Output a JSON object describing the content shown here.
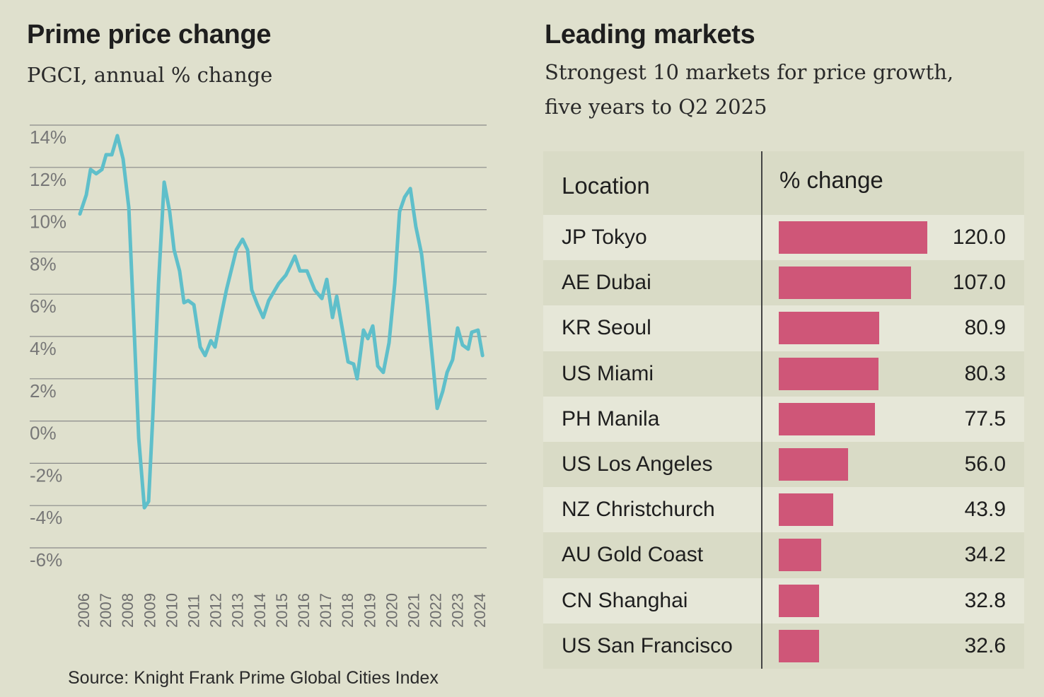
{
  "left": {
    "title": "Prime price change",
    "subtitle": "PGCI, annual % change",
    "source": "Source: Knight Frank Prime Global Cities Index"
  },
  "right": {
    "title": "Leading markets",
    "subtitle_line1": "Strongest 10 markets for price growth,",
    "subtitle_line2": "five years to Q2 2025",
    "header_location": "Location",
    "header_change": "% change"
  },
  "colors": {
    "line": "#5fbfca",
    "bar": "#cf5678",
    "background": "#dfe0cd",
    "grid": "#8a8a8a"
  },
  "chart_data": [
    {
      "type": "line",
      "title": "Prime price change",
      "subtitle": "PGCI, annual % change",
      "ylim": [
        -6,
        14
      ],
      "y_ticks": [
        "14%",
        "12%",
        "10%",
        "8%",
        "6%",
        "4%",
        "2%",
        "0%",
        "-2%",
        "-4%",
        "-6%"
      ],
      "y_tick_values": [
        14,
        12,
        10,
        8,
        6,
        4,
        2,
        0,
        -2,
        -4,
        -6
      ],
      "x_ticks": [
        "2006",
        "2007",
        "2008",
        "2009",
        "2010",
        "2011",
        "2012",
        "2013",
        "2014",
        "2015",
        "2016",
        "2017",
        "2018",
        "2019",
        "2020",
        "2021",
        "2022",
        "2023",
        "2024"
      ],
      "grid": true,
      "x": [
        2005.84,
        2006.13,
        2006.32,
        2006.58,
        2006.84,
        2007.03,
        2007.29,
        2007.54,
        2007.8,
        2008.06,
        2008.32,
        2008.51,
        2008.77,
        2008.96,
        2009.15,
        2009.41,
        2009.67,
        2009.92,
        2010.12,
        2010.37,
        2010.57,
        2010.76,
        2011.02,
        2011.31,
        2011.53,
        2011.79,
        2011.98,
        2012.24,
        2012.5,
        2012.95,
        2013.23,
        2013.46,
        2013.65,
        2013.91,
        2014.17,
        2014.42,
        2014.87,
        2015.2,
        2015.39,
        2015.61,
        2015.84,
        2016.16,
        2016.51,
        2016.84,
        2017.06,
        2017.32,
        2017.51,
        2018.03,
        2018.28,
        2018.44,
        2018.73,
        2018.93,
        2019.15,
        2019.38,
        2019.63,
        2019.89,
        2020.15,
        2020.37,
        2020.6,
        2020.86,
        2021.11,
        2021.37,
        2021.63,
        2022.08,
        2022.33,
        2022.53,
        2022.78,
        2023.01,
        2023.23,
        2023.49,
        2023.65,
        2023.94,
        2024.14
      ],
      "y": [
        9.8,
        10.7,
        11.9,
        11.7,
        11.9,
        12.6,
        12.6,
        13.5,
        12.4,
        10.1,
        3.9,
        -0.8,
        -4.1,
        -3.8,
        0.2,
        6.5,
        11.3,
        9.9,
        8.1,
        7.1,
        5.6,
        5.7,
        5.5,
        3.5,
        3.1,
        3.8,
        3.5,
        4.9,
        6.2,
        8.1,
        8.6,
        8.1,
        6.2,
        5.5,
        4.9,
        5.7,
        6.5,
        6.9,
        7.3,
        7.8,
        7.1,
        7.1,
        6.2,
        5.8,
        6.7,
        4.9,
        5.9,
        2.8,
        2.7,
        2.0,
        4.3,
        3.9,
        4.5,
        2.6,
        2.3,
        3.7,
        6.5,
        9.9,
        10.6,
        11.0,
        9.2,
        7.9,
        5.5,
        0.6,
        1.4,
        2.3,
        2.9,
        4.4,
        3.6,
        3.4,
        4.2,
        4.3,
        3.1
      ]
    },
    {
      "type": "bar",
      "orientation": "horizontal",
      "title": "Leading markets",
      "columns": [
        "Location",
        "% change"
      ],
      "categories": [
        "JP Tokyo",
        "AE Dubai",
        "KR Seoul",
        "US Miami",
        "PH Manila",
        "US Los Angeles",
        "NZ Christchurch",
        "AU Gold Coast",
        "CN Shanghai",
        "US San Francisco"
      ],
      "values": [
        120.0,
        107.0,
        80.9,
        80.3,
        77.5,
        56.0,
        43.9,
        34.2,
        32.8,
        32.6
      ],
      "labels": [
        "120.0",
        "107.0",
        "80.9",
        "80.3",
        "77.5",
        "56.0",
        "43.9",
        "34.2",
        "32.8",
        "32.6"
      ]
    }
  ]
}
